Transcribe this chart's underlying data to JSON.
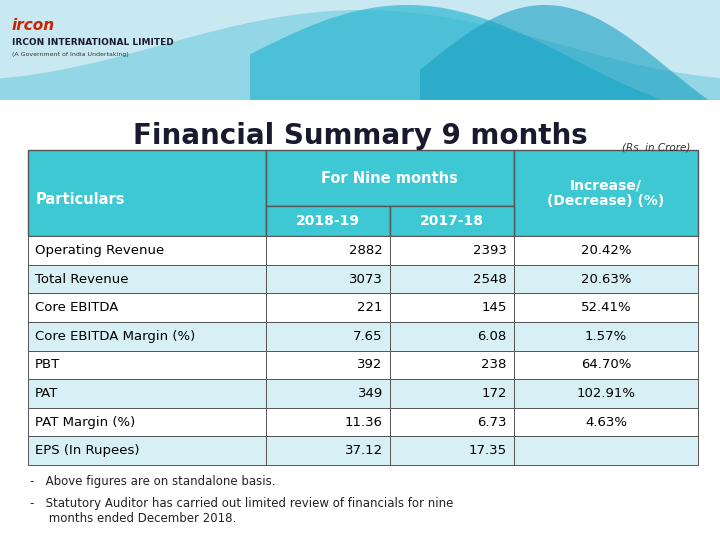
{
  "title": "Financial Summary 9 months",
  "subtitle": "(Rs. in Crore)",
  "bg_color": "#FFFFFF",
  "header_bg": "#3EC8D4",
  "header_text_color": "#FFFFFF",
  "row_bg_even": "#D6F0F5",
  "row_bg_odd": "#FFFFFF",
  "border_color": "#555555",
  "col_group_header": "For Nine months",
  "col_subheaders": [
    "2018-19",
    "2017-18"
  ],
  "col_particulars": "Particulars",
  "col_increase": "Increase/\n(Decrease) (%)",
  "rows": [
    [
      "Operating Revenue",
      "2882",
      "2393",
      "20.42%"
    ],
    [
      "Total Revenue",
      "3073",
      "2548",
      "20.63%"
    ],
    [
      "Core EBITDA",
      "221",
      "145",
      "52.41%"
    ],
    [
      "Core EBITDA Margin (%)",
      "7.65",
      "6.08",
      "1.57%"
    ],
    [
      "PBT",
      "392",
      "238",
      "64.70%"
    ],
    [
      "PAT",
      "349",
      "172",
      "102.91%"
    ],
    [
      "PAT Margin (%)",
      "11.36",
      "6.73",
      "4.63%"
    ],
    [
      "EPS (In Rupees)",
      "37.12",
      "17.35",
      ""
    ]
  ],
  "footnote1": "-   Above figures are on standalone basis.",
  "footnote2": "-   Statutory Auditor has carried out limited review of financials for nine\n     months ended December 2018.",
  "wave_bg_light": "#C8E8F0",
  "wave_bg_mid": "#60C8DC",
  "wave_bg_dark": "#30B8D0",
  "title_color": "#1a1a2e",
  "title_fontsize": 20,
  "header_fontsize": 10,
  "cell_fontsize": 9.5,
  "footnote_fontsize": 8.5,
  "ircon_text": "IRCON INTERNATIONAL LIMITED",
  "ircon_sub": "(A Government of India Undertaking)"
}
